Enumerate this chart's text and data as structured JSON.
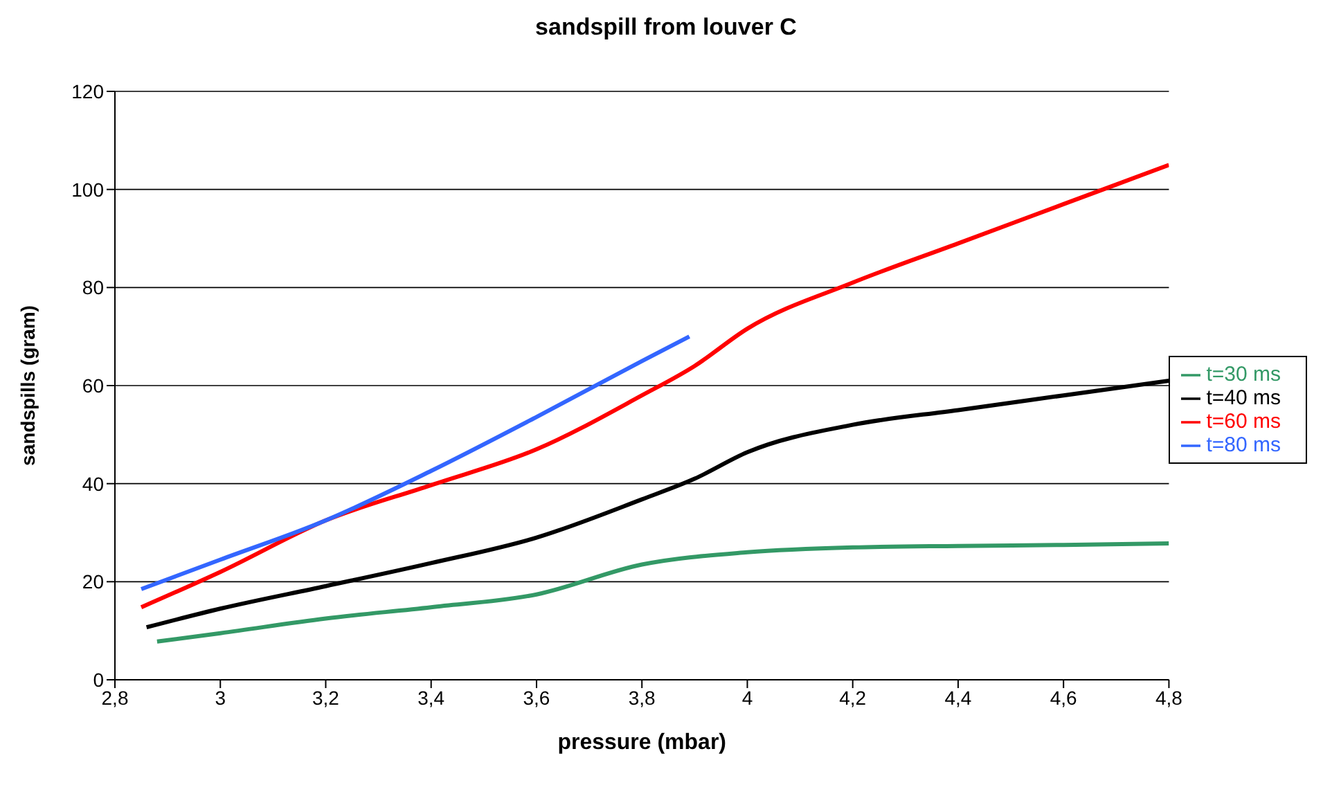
{
  "chart_data": {
    "type": "line",
    "title": "sandspill from louver C",
    "xlabel": "pressure (mbar)",
    "ylabel": "sandspills (gram)",
    "xlim": [
      2.8,
      4.8
    ],
    "xticks": [
      {
        "value": 2.8,
        "label": "2,8"
      },
      {
        "value": 3,
        "label": "3"
      },
      {
        "value": 3.2,
        "label": "3,2"
      },
      {
        "value": 3.4,
        "label": "3,4"
      },
      {
        "value": 3.6,
        "label": "3,6"
      },
      {
        "value": 3.8,
        "label": "3,8"
      },
      {
        "value": 4,
        "label": "4"
      },
      {
        "value": 4.2,
        "label": "4,2"
      },
      {
        "value": 4.4,
        "label": "4,4"
      },
      {
        "value": 4.6,
        "label": "4,6"
      },
      {
        "value": 4.8,
        "label": "4,8"
      }
    ],
    "ylim": [
      0,
      120
    ],
    "yticks": [
      0,
      20,
      40,
      60,
      80,
      100,
      120
    ],
    "grid": "y",
    "legend": "right",
    "marker": "none",
    "line_style": "solid",
    "series": [
      {
        "name": "t=30 ms",
        "color": "#339966",
        "x": [
          2.88,
          3.0,
          3.2,
          3.4,
          3.6,
          3.8,
          4.0,
          4.2,
          4.4,
          4.6,
          4.8
        ],
        "values": [
          7.8,
          9.5,
          12.5,
          14.8,
          17.4,
          23.5,
          26,
          27,
          27.3,
          27.5,
          27.8
        ]
      },
      {
        "name": "t=40 ms",
        "color": "#000000",
        "x": [
          2.86,
          3.0,
          3.2,
          3.4,
          3.6,
          3.8,
          3.9,
          4.0,
          4.2,
          4.4,
          4.6,
          4.8
        ],
        "values": [
          10.7,
          14.5,
          19.1,
          23.8,
          29,
          36.8,
          41,
          46.4,
          52,
          55,
          58,
          61
        ]
      },
      {
        "name": "t=60 ms",
        "color": "#ff0000",
        "x": [
          2.85,
          3.0,
          3.2,
          3.4,
          3.6,
          3.8,
          3.9,
          4.0,
          4.2,
          4.4,
          4.6,
          4.8
        ],
        "values": [
          14.8,
          22,
          32.5,
          39.7,
          47,
          58,
          64,
          71.6,
          81,
          89,
          97,
          105
        ]
      },
      {
        "name": "t=80 ms",
        "color": "#3366ff",
        "x": [
          2.85,
          3.0,
          3.2,
          3.4,
          3.6,
          3.8,
          3.89
        ],
        "values": [
          18.5,
          24.5,
          32.5,
          42.6,
          53.6,
          65,
          70
        ]
      }
    ]
  }
}
